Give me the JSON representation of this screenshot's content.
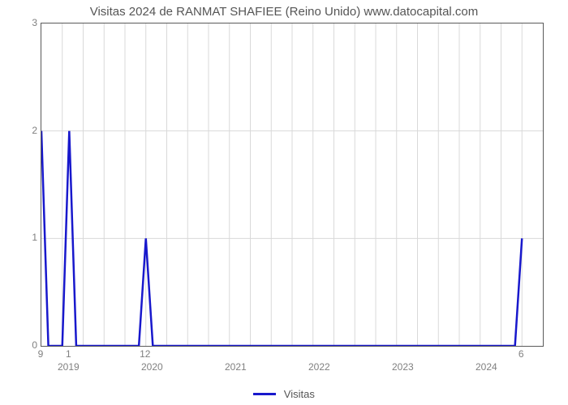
{
  "chart": {
    "type": "line",
    "title": "Visitas 2024 de RANMAT SHAFIEE (Reino Unido) www.datocapital.com",
    "title_fontsize": 15,
    "title_color": "#555555",
    "background_color": "#ffffff",
    "plot_border_color": "#5a5a5a",
    "grid_color": "#d9d9d9",
    "axis_label_color": "#808080",
    "axis_label_fontsize": 12,
    "x_domain": [
      0,
      72
    ],
    "ylim": [
      0,
      3
    ],
    "ytick_step": 1,
    "yticks": [
      0,
      1,
      2,
      3
    ],
    "n_vgrid": 24,
    "major_x": {
      "positions": [
        4,
        16,
        28,
        40,
        52,
        64
      ],
      "labels": [
        "2019",
        "2020",
        "2021",
        "2022",
        "2023",
        "2024"
      ]
    },
    "point_labels": [
      {
        "x": 0,
        "value": "9"
      },
      {
        "x": 4,
        "value": "1"
      },
      {
        "x": 15,
        "value": "12"
      },
      {
        "x": 69,
        "value": "6"
      }
    ],
    "series": {
      "name": "Visitas",
      "color": "#1818cc",
      "line_width": 2.5,
      "points": [
        [
          0,
          2
        ],
        [
          1,
          0
        ],
        [
          3,
          0
        ],
        [
          4,
          2
        ],
        [
          5,
          0
        ],
        [
          14,
          0
        ],
        [
          15,
          1
        ],
        [
          16,
          0
        ],
        [
          68,
          0
        ],
        [
          69,
          1
        ]
      ]
    },
    "legend": {
      "label": "Visitas",
      "swatch_color": "#1818cc",
      "swatch_width": 28,
      "swatch_line_width": 3,
      "text_color": "#555555",
      "fontsize": 13
    }
  }
}
